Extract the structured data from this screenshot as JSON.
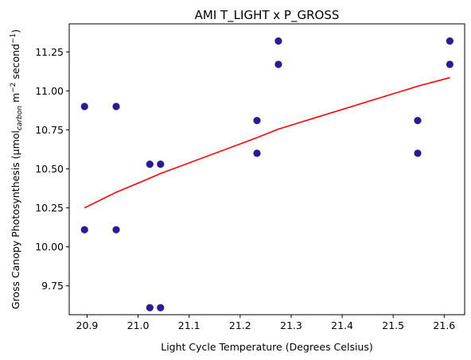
{
  "chart_data": {
    "type": "scatter",
    "title": "AMI T_LIGHT x P_GROSS",
    "xlabel": "Light Cycle Temperature (Degrees Celsius)",
    "ylabel": {
      "main": "Gross Canopy Photosynthesis (μmol",
      "sub": "carbon",
      "mid1": " m",
      "sup1": "−2",
      "mid2": " second",
      "sup2": "−1",
      "end": ")"
    },
    "xlim": [
      20.865,
      21.64
    ],
    "ylim": [
      9.565,
      11.43
    ],
    "xticks": [
      20.9,
      21.0,
      21.1,
      21.2,
      21.3,
      21.4,
      21.5,
      21.6
    ],
    "xtick_labels": [
      "20.9",
      "21.0",
      "21.1",
      "21.2",
      "21.3",
      "21.4",
      "21.5",
      "21.6"
    ],
    "yticks": [
      9.75,
      10.0,
      10.25,
      10.5,
      10.75,
      11.0,
      11.25
    ],
    "ytick_labels": [
      "9.75",
      "10.00",
      "10.25",
      "10.50",
      "10.75",
      "11.00",
      "11.25"
    ],
    "grid": false,
    "points": {
      "color": "#2a1a96",
      "x": [
        20.895,
        20.895,
        20.957,
        20.957,
        21.023,
        21.023,
        21.044,
        21.044,
        21.233,
        21.233,
        21.275,
        21.275,
        21.548,
        21.548,
        21.611,
        21.611
      ],
      "y": [
        10.9,
        10.11,
        10.9,
        10.11,
        10.53,
        9.61,
        10.53,
        9.61,
        10.81,
        10.6,
        11.32,
        11.17,
        10.81,
        10.6,
        11.32,
        11.17
      ]
    },
    "trend": {
      "color": "#ff0000",
      "x": [
        20.895,
        20.957,
        21.023,
        21.044,
        21.233,
        21.275,
        21.548,
        21.611
      ],
      "y": [
        10.25,
        10.35,
        10.44,
        10.47,
        10.7,
        10.755,
        11.03,
        11.085
      ]
    }
  }
}
